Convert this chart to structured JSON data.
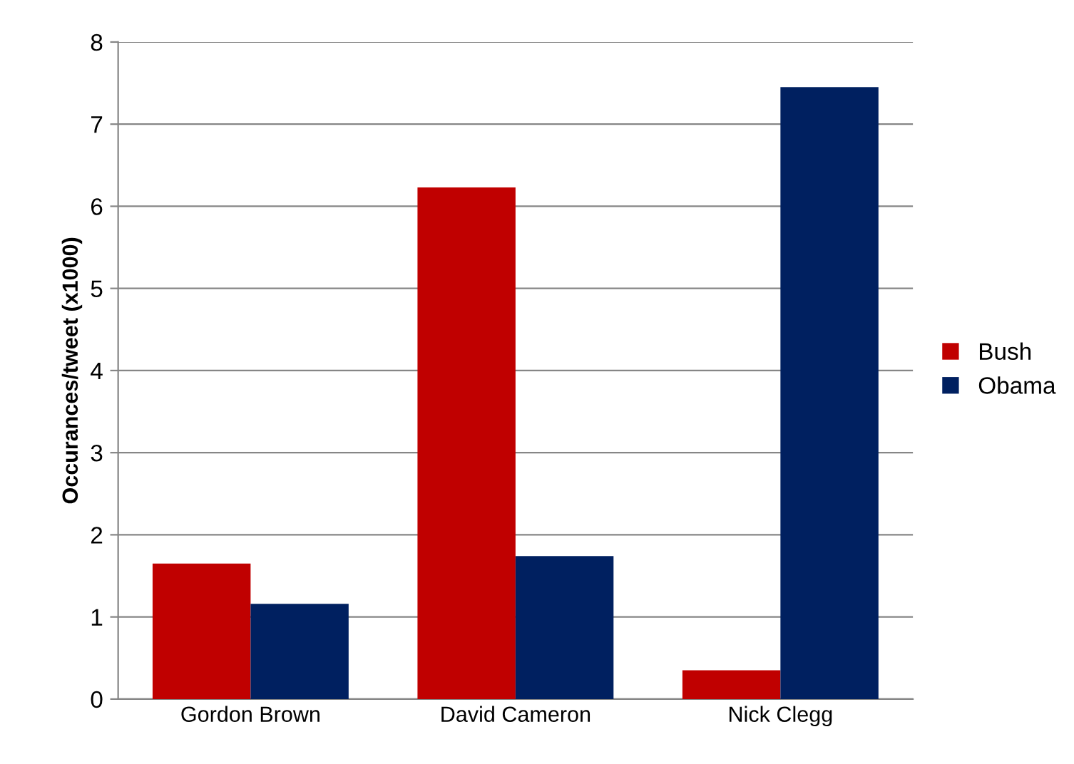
{
  "chart_data": {
    "type": "bar",
    "ylabel": "Occurances/tweet (x1000)",
    "categories": [
      "Gordon Brown",
      "David Cameron",
      "Nick Clegg"
    ],
    "series": [
      {
        "name": "Bush",
        "color": "#c00000",
        "values": [
          1.65,
          6.23,
          0.35
        ]
      },
      {
        "name": "Obama",
        "color": "#002060",
        "values": [
          1.16,
          1.74,
          7.45
        ]
      }
    ],
    "ylim": [
      0,
      8
    ],
    "yticks": [
      0,
      1,
      2,
      3,
      4,
      5,
      6,
      7,
      8
    ],
    "grid": "y",
    "legend": "right"
  }
}
